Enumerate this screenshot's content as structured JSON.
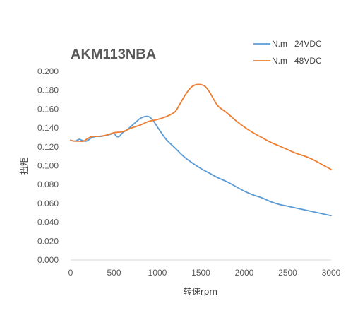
{
  "chart_data": {
    "type": "line",
    "title": "AKM113NBA",
    "xlabel": "转速rpm",
    "ylabel": "扭矩",
    "xlim": [
      0,
      3000
    ],
    "ylim": [
      0,
      0.2
    ],
    "xticks": [
      0,
      500,
      1000,
      1500,
      2000,
      2500,
      3000
    ],
    "yticks": [
      0.0,
      0.02,
      0.04,
      0.06,
      0.08,
      0.1,
      0.12,
      0.14,
      0.16,
      0.18,
      0.2
    ],
    "ytick_labels": [
      "0.000",
      "0.020",
      "0.040",
      "0.060",
      "0.080",
      "0.100",
      "0.120",
      "0.140",
      "0.160",
      "0.180",
      "0.200"
    ],
    "grid": false,
    "legend_position": "top-right",
    "series": [
      {
        "name": "N.m   24VDC",
        "color": "#5B9BD5",
        "x": [
          0,
          50,
          100,
          130,
          180,
          250,
          300,
          350,
          400,
          450,
          500,
          530,
          560,
          600,
          650,
          700,
          750,
          800,
          850,
          900,
          950,
          1000,
          1100,
          1200,
          1300,
          1400,
          1500,
          1600,
          1700,
          1800,
          1900,
          2000,
          2100,
          2200,
          2300,
          2400,
          2500,
          2600,
          2700,
          2800,
          2900,
          3000
        ],
        "y": [
          0.127,
          0.126,
          0.128,
          0.127,
          0.126,
          0.13,
          0.131,
          0.131,
          0.132,
          0.133,
          0.134,
          0.131,
          0.131,
          0.135,
          0.138,
          0.142,
          0.146,
          0.15,
          0.152,
          0.152,
          0.148,
          0.141,
          0.128,
          0.119,
          0.11,
          0.103,
          0.097,
          0.092,
          0.087,
          0.083,
          0.078,
          0.073,
          0.069,
          0.066,
          0.062,
          0.059,
          0.057,
          0.055,
          0.053,
          0.051,
          0.049,
          0.047
        ]
      },
      {
        "name": "N.m   48VDC",
        "color": "#ED7D31",
        "x": [
          0,
          50,
          100,
          150,
          200,
          250,
          300,
          400,
          500,
          600,
          700,
          800,
          900,
          1000,
          1100,
          1200,
          1250,
          1300,
          1350,
          1400,
          1450,
          1500,
          1550,
          1600,
          1650,
          1700,
          1800,
          1900,
          2000,
          2100,
          2200,
          2300,
          2400,
          2500,
          2600,
          2700,
          2800,
          2900,
          3000
        ],
        "y": [
          0.127,
          0.126,
          0.126,
          0.126,
          0.129,
          0.131,
          0.131,
          0.132,
          0.135,
          0.136,
          0.14,
          0.143,
          0.147,
          0.149,
          0.152,
          0.157,
          0.164,
          0.172,
          0.179,
          0.184,
          0.186,
          0.186,
          0.184,
          0.178,
          0.17,
          0.163,
          0.156,
          0.148,
          0.141,
          0.135,
          0.13,
          0.125,
          0.121,
          0.117,
          0.113,
          0.11,
          0.106,
          0.101,
          0.096
        ]
      }
    ]
  }
}
